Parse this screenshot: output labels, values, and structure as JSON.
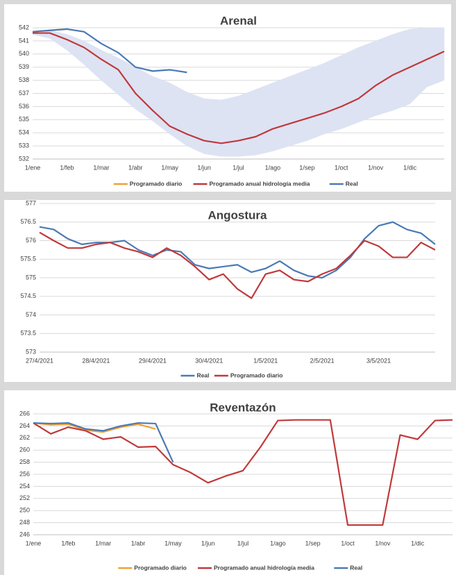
{
  "chart_data": [
    {
      "type": "line",
      "title": "Arenal",
      "categories": [
        "1/ene",
        null,
        "1/feb",
        null,
        "1/mar",
        null,
        "1/abr",
        null,
        "1/may",
        null,
        "1/jun",
        null,
        "1/jul",
        null,
        "1/ago",
        null,
        "1/sep",
        null,
        "1/oct",
        null,
        "1/nov",
        null,
        "1/dic",
        null,
        null
      ],
      "ylim": [
        532,
        542
      ],
      "yticks": [
        532,
        533,
        534,
        535,
        536,
        537,
        538,
        539,
        540,
        541,
        542
      ],
      "grid": true,
      "legend": "bottom",
      "band": {
        "color": "#dde3f3",
        "upper": [
          541.7,
          541.8,
          541.5,
          541.0,
          540.3,
          539.7,
          539.0,
          538.3,
          537.8,
          537.1,
          536.6,
          536.5,
          536.8,
          537.3,
          537.8,
          538.3,
          538.8,
          539.3,
          539.9,
          540.5,
          541.0,
          541.5,
          541.9,
          542.0,
          542.0
        ],
        "lower": [
          541.5,
          541.2,
          540.3,
          539.2,
          538.0,
          536.9,
          535.8,
          534.9,
          533.9,
          533.0,
          532.4,
          532.2,
          532.2,
          532.3,
          532.6,
          533.0,
          533.4,
          533.9,
          534.3,
          534.8,
          535.3,
          535.7,
          536.2,
          537.5,
          538.0
        ]
      },
      "series": [
        {
          "name": "Programado diario",
          "color": "#f0a030",
          "values": [
            541.7,
            541.8,
            541.9,
            null,
            null,
            null,
            null,
            null,
            null,
            null,
            null,
            null,
            null,
            null,
            null,
            null,
            null,
            null,
            null,
            null,
            null,
            null,
            null,
            null,
            null
          ]
        },
        {
          "name": "Programado anual hidrología media",
          "color": "#c0393b",
          "values": [
            541.6,
            541.6,
            541.1,
            540.5,
            539.6,
            538.8,
            537.0,
            535.7,
            534.5,
            533.9,
            533.4,
            533.2,
            533.4,
            533.7,
            534.3,
            534.7,
            535.1,
            535.5,
            536.0,
            536.6,
            537.6,
            538.4,
            539.0,
            539.6,
            540.2
          ]
        },
        {
          "name": "Real",
          "color": "#4a7ab5",
          "values": [
            541.7,
            541.8,
            541.9,
            541.7,
            540.8,
            540.1,
            539.0,
            538.7,
            538.8,
            538.6,
            null,
            null,
            null,
            null,
            null,
            null,
            null,
            null,
            null,
            null,
            null,
            null,
            null,
            null,
            null
          ]
        }
      ]
    },
    {
      "type": "line",
      "title": "Angostura",
      "categories": [
        "27/4/2021",
        null,
        null,
        null,
        "28/4/2021",
        null,
        null,
        null,
        "29/4/2021",
        null,
        null,
        null,
        "30/4/2021",
        null,
        null,
        null,
        "1/5/2021",
        null,
        null,
        null,
        "2/5/2021",
        null,
        null,
        null,
        "3/5/2021",
        null,
        null,
        null,
        null
      ],
      "ylim": [
        573,
        577
      ],
      "yticks": [
        573,
        573.5,
        574,
        574.5,
        575,
        575.5,
        576,
        576.5,
        577
      ],
      "grid": true,
      "legend": "bottom",
      "series": [
        {
          "name": "Real",
          "color": "#4a7ab5",
          "values": [
            576.37,
            576.3,
            576.05,
            575.9,
            575.95,
            575.95,
            576.0,
            575.75,
            575.6,
            575.75,
            575.7,
            575.35,
            575.25,
            575.3,
            575.35,
            575.15,
            575.25,
            575.45,
            575.2,
            575.05,
            575.0,
            575.2,
            575.55,
            576.05,
            576.4,
            576.5,
            576.3,
            576.2,
            575.9
          ]
        },
        {
          "name": "Programado diario",
          "color": "#c0393b",
          "values": [
            576.22,
            576.0,
            575.8,
            575.8,
            575.9,
            575.95,
            575.8,
            575.7,
            575.55,
            575.8,
            575.6,
            575.3,
            574.95,
            575.1,
            574.7,
            574.45,
            575.1,
            575.2,
            574.95,
            574.9,
            575.1,
            575.25,
            575.6,
            576.0,
            575.85,
            575.55,
            575.55,
            575.95,
            575.75
          ]
        }
      ]
    },
    {
      "type": "line",
      "title": "Reventazón",
      "categories": [
        "1/ene",
        null,
        "1/feb",
        null,
        "1/mar",
        null,
        "1/abr",
        null,
        "1/may",
        null,
        "1/jun",
        null,
        "1/jul",
        null,
        "1/ago",
        null,
        "1/sep",
        null,
        "1/oct",
        null,
        "1/nov",
        null,
        "1/dic",
        null,
        null
      ],
      "ylim": [
        246,
        266
      ],
      "yticks": [
        246,
        248,
        250,
        252,
        254,
        256,
        258,
        260,
        262,
        264,
        266
      ],
      "grid": true,
      "legend": "bottom",
      "series": [
        {
          "name": "Programado diario",
          "color": "#f0a030",
          "values": [
            264.5,
            264.2,
            264.3,
            263.3,
            263.0,
            263.8,
            264.3,
            263.5,
            null,
            null,
            null,
            null,
            null,
            null,
            null,
            null,
            null,
            null,
            null,
            null,
            null,
            null,
            null,
            null,
            null
          ]
        },
        {
          "name": "Programado anual hidrología media",
          "color": "#c0393b",
          "values": [
            264.5,
            262.7,
            263.8,
            263.2,
            261.8,
            262.2,
            260.5,
            260.6,
            257.6,
            256.3,
            254.6,
            255.7,
            256.6,
            260.5,
            264.9,
            265.0,
            265.0,
            265.0,
            247.6,
            247.6,
            247.6,
            262.5,
            261.8,
            264.9,
            265.0
          ]
        },
        {
          "name": "Real",
          "color": "#4a7ab5",
          "values": [
            264.5,
            264.4,
            264.5,
            263.5,
            263.2,
            264.0,
            264.5,
            264.4,
            258.0,
            null,
            null,
            null,
            null,
            null,
            null,
            null,
            null,
            null,
            null,
            null,
            null,
            null,
            null,
            null,
            null
          ]
        }
      ]
    }
  ]
}
